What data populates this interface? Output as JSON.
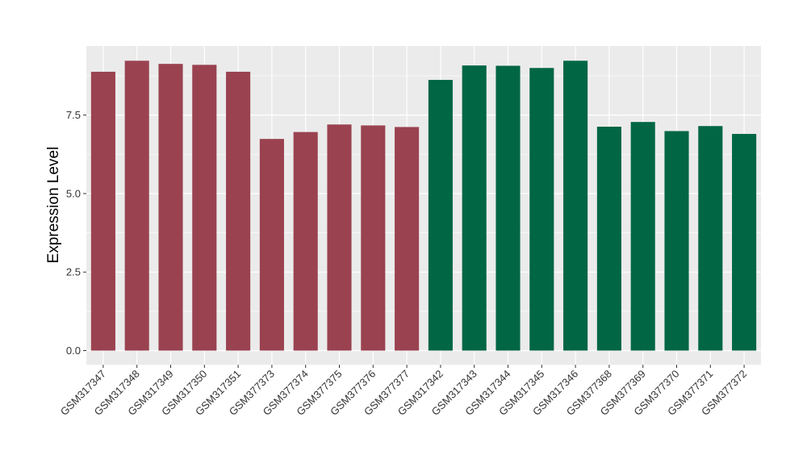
{
  "chart_data": {
    "type": "bar",
    "title": "",
    "xlabel": "",
    "ylabel": "Expression Level",
    "ylim": [
      -0.45,
      9.7
    ],
    "yticks": [
      0.0,
      2.5,
      5.0,
      7.5
    ],
    "ytick_labels": [
      "0.0",
      "2.5",
      "5.0",
      "7.5"
    ],
    "grid": true,
    "legend": "none",
    "categories": [
      "GSM317347",
      "GSM317348",
      "GSM317349",
      "GSM317350",
      "GSM317351",
      "GSM377373",
      "GSM377374",
      "GSM377375",
      "GSM377376",
      "GSM377377",
      "GSM317342",
      "GSM317343",
      "GSM317344",
      "GSM317345",
      "GSM317346",
      "GSM377368",
      "GSM377369",
      "GSM377370",
      "GSM377371",
      "GSM377372"
    ],
    "values": [
      8.88,
      9.23,
      9.13,
      9.1,
      8.88,
      6.74,
      6.96,
      7.2,
      7.17,
      7.12,
      8.62,
      9.08,
      9.07,
      9.0,
      9.23,
      7.13,
      7.28,
      6.99,
      7.15,
      6.9
    ],
    "bar_colors": [
      "#9a4250",
      "#9a4250",
      "#9a4250",
      "#9a4250",
      "#9a4250",
      "#9a4250",
      "#9a4250",
      "#9a4250",
      "#9a4250",
      "#9a4250",
      "#006644",
      "#006644",
      "#006644",
      "#006644",
      "#006644",
      "#006644",
      "#006644",
      "#006644",
      "#006644",
      "#006644"
    ],
    "panel_background": "#ebebeb",
    "grid_color": "#ffffff"
  }
}
